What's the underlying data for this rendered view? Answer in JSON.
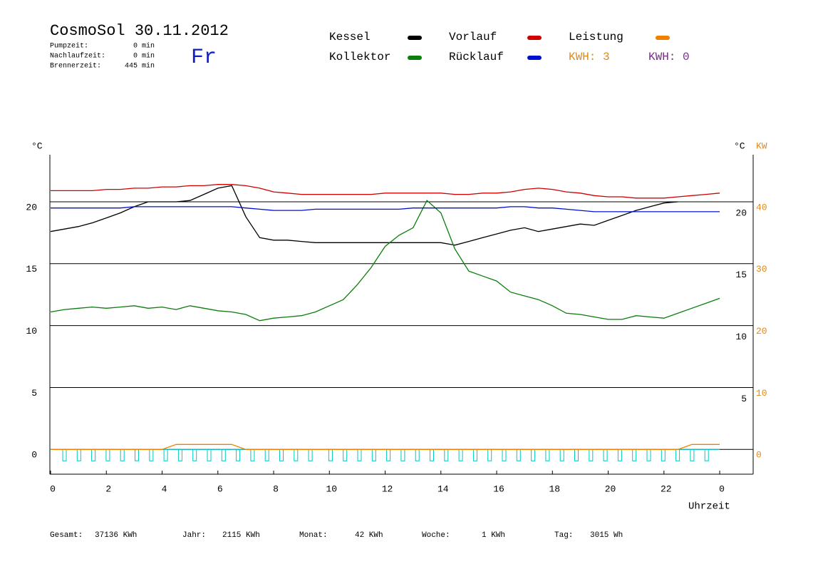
{
  "chart_data": {
    "type": "line",
    "title": "CosmoSol 30.11.2012",
    "day": "Fr",
    "stats": [
      {
        "label": "Pumpzeit:",
        "value": "0 min"
      },
      {
        "label": "Nachlaufzeit:",
        "value": "0 min"
      },
      {
        "label": "Brennerzeit:",
        "value": "445 min"
      }
    ],
    "kwh_labels": [
      {
        "text": "KWH: 3",
        "color": "#e08a1e"
      },
      {
        "text": "KWH: 0",
        "color": "#7b2a8c"
      }
    ],
    "ylabel": "°C",
    "y2label_left": "°C",
    "y2label": "KW",
    "xlabel": "Uhrzeit",
    "x": [
      0,
      0.5,
      1,
      1.5,
      2,
      2.5,
      3,
      3.5,
      4,
      4.5,
      5,
      5.5,
      6,
      6.5,
      7,
      7.5,
      8,
      8.5,
      9,
      9.5,
      10,
      10.5,
      11,
      11.5,
      12,
      12.5,
      13,
      13.5,
      14,
      14.5,
      15,
      15.5,
      16,
      16.5,
      17,
      17.5,
      18,
      18.5,
      19,
      19.5,
      20,
      20.5,
      21,
      21.5,
      22,
      22.5,
      23,
      23.5,
      24
    ],
    "xlim": [
      0,
      25.2
    ],
    "xticks": [
      0,
      2,
      4,
      6,
      8,
      10,
      12,
      14,
      16,
      18,
      20,
      22,
      {
        "value": 24,
        "label": "0"
      }
    ],
    "ylim": [
      -2,
      23.8
    ],
    "yticks": [
      0,
      5,
      10,
      15,
      20
    ],
    "yticks_right": [
      5,
      10,
      15,
      20
    ],
    "y2lim": [
      -4,
      47.6
    ],
    "y2ticks": [
      0,
      10,
      20,
      30,
      40
    ],
    "grid": true,
    "series": [
      {
        "name": "Kessel",
        "color": "#000000",
        "values": [
          17.6,
          17.8,
          18.0,
          18.3,
          18.7,
          19.1,
          19.6,
          20.0,
          20.0,
          20.0,
          20.1,
          20.6,
          21.1,
          21.3,
          18.8,
          17.1,
          16.9,
          16.9,
          16.8,
          16.7,
          16.7,
          16.7,
          16.7,
          16.7,
          16.7,
          16.7,
          16.7,
          16.7,
          16.7,
          16.5,
          16.8,
          17.1,
          17.4,
          17.7,
          17.9,
          17.6,
          17.8,
          18.0,
          18.2,
          18.1,
          18.5,
          18.9,
          19.3,
          19.6,
          19.9,
          20.0,
          null,
          null,
          null
        ]
      },
      {
        "name": "Kollektor",
        "color": "#0a7d0a",
        "values": [
          11.1,
          11.3,
          11.4,
          11.5,
          11.4,
          11.5,
          11.6,
          11.4,
          11.5,
          11.3,
          11.6,
          11.4,
          11.2,
          11.1,
          10.9,
          10.4,
          10.6,
          10.7,
          10.8,
          11.1,
          11.6,
          12.1,
          13.3,
          14.7,
          16.4,
          17.3,
          17.9,
          20.1,
          19.1,
          16.2,
          14.4,
          14.0,
          13.6,
          12.7,
          12.4,
          12.1,
          11.6,
          11.0,
          10.9,
          10.7,
          10.5,
          10.5,
          10.8,
          10.7,
          10.6,
          11.0,
          11.4,
          11.8,
          12.2
        ]
      },
      {
        "name": "Vorlauf",
        "color": "#d00000",
        "values": [
          20.9,
          20.9,
          20.9,
          20.9,
          21.0,
          21.0,
          21.1,
          21.1,
          21.2,
          21.2,
          21.3,
          21.3,
          21.4,
          21.4,
          21.3,
          21.1,
          20.8,
          20.7,
          20.6,
          20.6,
          20.6,
          20.6,
          20.6,
          20.6,
          20.7,
          20.7,
          20.7,
          20.7,
          20.7,
          20.6,
          20.6,
          20.7,
          20.7,
          20.8,
          21.0,
          21.1,
          21.0,
          20.8,
          20.7,
          20.5,
          20.4,
          20.4,
          20.3,
          20.3,
          20.3,
          20.4,
          20.5,
          20.6,
          20.7
        ]
      },
      {
        "name": "Rücklauf",
        "color": "#0010d0",
        "values": [
          19.5,
          19.5,
          19.5,
          19.5,
          19.5,
          19.5,
          19.6,
          19.6,
          19.6,
          19.6,
          19.6,
          19.6,
          19.6,
          19.6,
          19.5,
          19.4,
          19.3,
          19.3,
          19.3,
          19.4,
          19.4,
          19.4,
          19.4,
          19.4,
          19.4,
          19.4,
          19.5,
          19.5,
          19.5,
          19.5,
          19.5,
          19.5,
          19.5,
          19.6,
          19.6,
          19.5,
          19.5,
          19.4,
          19.3,
          19.2,
          19.2,
          19.2,
          19.2,
          19.2,
          19.2,
          19.2,
          19.2,
          19.2,
          19.2
        ]
      },
      {
        "name": "Leistung",
        "color": "#f08000",
        "axis": "y2",
        "values": [
          0,
          0,
          0,
          0,
          0,
          0,
          0,
          0,
          0,
          0.8,
          0.8,
          0.8,
          0.8,
          0.8,
          0,
          0,
          0,
          0,
          0,
          0,
          0,
          0,
          0,
          0,
          0,
          0,
          0,
          0,
          0,
          0,
          0,
          0,
          0,
          0,
          0,
          0,
          0,
          0,
          0,
          0,
          0,
          0,
          0,
          0,
          0,
          0,
          0.8,
          0.8,
          0.8
        ]
      }
    ],
    "totals": [
      {
        "label": "Gesamt:",
        "value": "37136 KWh"
      },
      {
        "label": "Jahr:",
        "value": "2115 KWh"
      },
      {
        "label": "Monat:",
        "value": "42 KWh"
      },
      {
        "label": "Woche:",
        "value": "1 KWh"
      },
      {
        "label": "Tag:",
        "value": "3015 Wh"
      }
    ]
  }
}
